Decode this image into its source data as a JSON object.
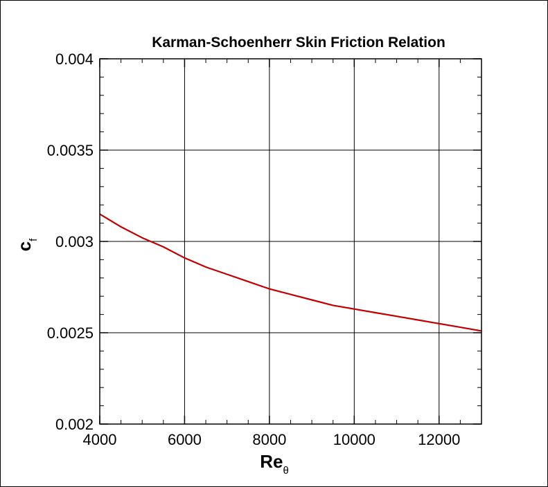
{
  "chart_data": {
    "type": "line",
    "title": "Karman-Schoenherr Skin Friction Relation",
    "xlabel": {
      "main": "Re",
      "sub": "θ"
    },
    "ylabel": {
      "main": "c",
      "sub": "f"
    },
    "xlim": [
      4000,
      13000
    ],
    "ylim": [
      0.002,
      0.004
    ],
    "x_ticks": [
      4000,
      6000,
      8000,
      10000,
      12000
    ],
    "x_tick_labels": [
      "4000",
      "6000",
      "8000",
      "10000",
      "12000"
    ],
    "y_ticks": [
      0.002,
      0.0025,
      0.003,
      0.0035,
      0.004
    ],
    "y_tick_labels": [
      "0.002",
      "0.0025",
      "0.003",
      "0.0035",
      "0.004"
    ],
    "grid": true,
    "series": [
      {
        "color": "#c00000",
        "x": [
          4000,
          4500,
          5000,
          5500,
          6000,
          6500,
          7000,
          7500,
          8000,
          8500,
          9000,
          9500,
          10000,
          10500,
          11000,
          11500,
          12000,
          12500,
          13000
        ],
        "y": [
          0.00315,
          0.00308,
          0.00302,
          0.00297,
          0.00291,
          0.00286,
          0.00282,
          0.00278,
          0.00274,
          0.00271,
          0.00268,
          0.00265,
          0.00263,
          0.00261,
          0.00259,
          0.00257,
          0.00255,
          0.00253,
          0.00251
        ]
      }
    ]
  }
}
